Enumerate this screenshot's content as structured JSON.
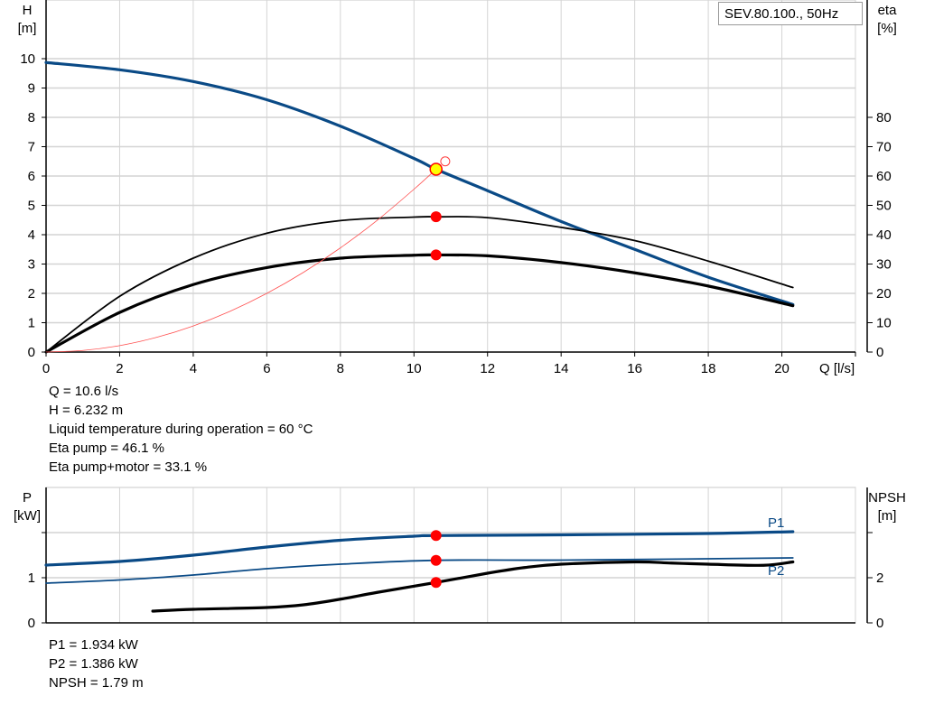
{
  "legend": "SEV.80.100., 50Hz",
  "chart_data": [
    {
      "type": "line",
      "xlabel": "Q [l/s]",
      "ylabel_left": [
        "H",
        "[m]"
      ],
      "ylabel_right": [
        "eta",
        "[%]"
      ],
      "xlim": [
        0,
        22
      ],
      "ylim_left": [
        0,
        12
      ],
      "ylim_right": [
        0,
        120
      ],
      "x_ticks": [
        0,
        2,
        4,
        6,
        8,
        10,
        12,
        14,
        16,
        18,
        20
      ],
      "y_ticks_left": [
        0,
        1,
        2,
        3,
        4,
        5,
        6,
        7,
        8,
        9,
        10
      ],
      "y_ticks_right": [
        0,
        10,
        20,
        30,
        40,
        50,
        60,
        70,
        80
      ],
      "grid": true,
      "series": [
        {
          "id": "H",
          "axis": "left",
          "color": "#0a4a86",
          "width": 3.2,
          "x": [
            0,
            2,
            4,
            6,
            8,
            10,
            10.6,
            12,
            14,
            16,
            18,
            20.3
          ],
          "y": [
            9.87,
            9.62,
            9.22,
            8.6,
            7.7,
            6.6,
            6.23,
            5.5,
            4.45,
            3.5,
            2.55,
            1.62
          ]
        },
        {
          "id": "eta-pump",
          "axis": "right",
          "color": "#000000",
          "width": 1.8,
          "x": [
            0,
            2,
            4,
            6,
            8,
            10,
            10.6,
            12,
            14,
            16,
            18,
            20.3
          ],
          "y": [
            0,
            19,
            32,
            40.5,
            44.8,
            46,
            46.1,
            45.8,
            42.5,
            38,
            31,
            22
          ]
        },
        {
          "id": "eta-pump-motor",
          "axis": "right",
          "color": "#000000",
          "width": 3.2,
          "x": [
            0,
            2,
            4,
            6,
            8,
            10,
            10.6,
            12,
            14,
            16,
            18,
            20.3
          ],
          "y": [
            0,
            13.5,
            23,
            28.8,
            32,
            33,
            33.1,
            32.8,
            30.5,
            27,
            22.5,
            15.8
          ]
        },
        {
          "id": "system",
          "axis": "left",
          "color": "#ff5050",
          "width": 0.8,
          "x": [
            0,
            1,
            2,
            3,
            4,
            5,
            6,
            7,
            8,
            9,
            10,
            10.6
          ],
          "y": [
            0,
            0.055,
            0.22,
            0.5,
            0.89,
            1.39,
            2.0,
            2.72,
            3.55,
            4.49,
            5.55,
            6.232
          ]
        }
      ],
      "operating_point": {
        "Q": 10.6,
        "H": 6.232,
        "eta_pump": 46.1,
        "eta_total": 33.1
      },
      "requested_point": {
        "Q": 10.85,
        "H": 6.5
      }
    },
    {
      "type": "line",
      "ylabel_left": [
        "P",
        "[kW]"
      ],
      "ylabel_right": [
        "NPSH",
        "[m]"
      ],
      "xlim": [
        0,
        22
      ],
      "ylim_left": [
        0,
        3
      ],
      "ylim_right": [
        0,
        6
      ],
      "y_ticks_left": [
        0,
        1,
        2
      ],
      "y_tick_labels_left": [
        "0",
        "1",
        ""
      ],
      "y_ticks_right": [
        0,
        2,
        4
      ],
      "y_tick_labels_right": [
        "0",
        "2",
        ""
      ],
      "grid": true,
      "series": [
        {
          "id": "P1",
          "name": "P1",
          "axis": "left",
          "color": "#0a4a86",
          "width": 3.2,
          "x": [
            0,
            2,
            4,
            6,
            8,
            10,
            10.6,
            14,
            18,
            20.3
          ],
          "y": [
            1.28,
            1.36,
            1.5,
            1.68,
            1.83,
            1.92,
            1.934,
            1.95,
            1.98,
            2.02
          ]
        },
        {
          "id": "P2",
          "name": "P2",
          "axis": "left",
          "color": "#0a4a86",
          "width": 1.8,
          "x": [
            0,
            2,
            4,
            6,
            8,
            10.6,
            14,
            18,
            20.3
          ],
          "y": [
            0.88,
            0.95,
            1.06,
            1.2,
            1.3,
            1.386,
            1.39,
            1.42,
            1.44
          ]
        },
        {
          "id": "NPSH",
          "axis": "right",
          "color": "#000000",
          "width": 3.2,
          "x": [
            2.9,
            4,
            6,
            7,
            8,
            9,
            10.6,
            12,
            13,
            14,
            16,
            17,
            18,
            19.5,
            20.3
          ],
          "y": [
            0.52,
            0.6,
            0.68,
            0.8,
            1.05,
            1.35,
            1.79,
            2.2,
            2.45,
            2.6,
            2.7,
            2.65,
            2.6,
            2.55,
            2.7
          ]
        }
      ],
      "operating_point": {
        "Q": 10.6,
        "P1": 1.934,
        "P2": 1.386,
        "NPSH": 1.79
      }
    }
  ],
  "info_top": [
    "Q = 10.6 l/s",
    "H = 6.232 m",
    "Liquid temperature during operation = 60 °C",
    "Eta pump = 46.1 %",
    "Eta pump+motor = 33.1 %"
  ],
  "info_bottom": [
    "P1 = 1.934 kW",
    "P2 = 1.386 kW",
    "NPSH = 1.79 m"
  ]
}
